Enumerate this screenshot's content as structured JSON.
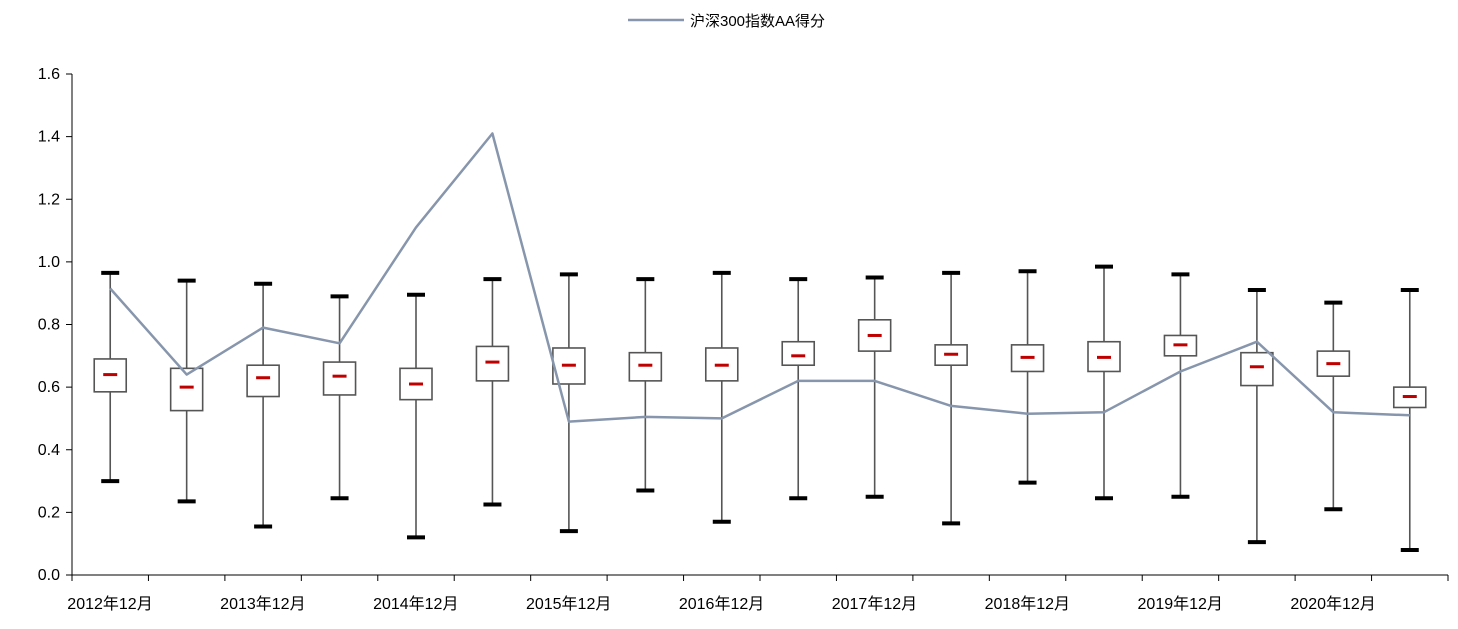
{
  "chart_data": {
    "type": "box",
    "x_tick_labels": [
      "2012年12月",
      "2013年12月",
      "2014年12月",
      "2015年12月",
      "2016年12月",
      "2017年12月",
      "2018年12月",
      "2019年12月",
      "2020年12月"
    ],
    "y_tick_labels": [
      "0.0",
      "0.2",
      "0.4",
      "0.6",
      "0.8",
      "1.0",
      "1.2",
      "1.4",
      "1.6"
    ],
    "ylim": [
      0,
      1.6
    ],
    "y_ticks": [
      0,
      0.2,
      0.4,
      0.6,
      0.8,
      1.0,
      1.2,
      1.4,
      1.6
    ],
    "grid": false,
    "legend_position": "top-center",
    "boxes": [
      {
        "min": 0.3,
        "q1": 0.585,
        "median": 0.64,
        "q3": 0.69,
        "max": 0.965
      },
      {
        "min": 0.235,
        "q1": 0.525,
        "median": 0.6,
        "q3": 0.66,
        "max": 0.94
      },
      {
        "min": 0.155,
        "q1": 0.57,
        "median": 0.63,
        "q3": 0.67,
        "max": 0.93
      },
      {
        "min": 0.245,
        "q1": 0.575,
        "median": 0.635,
        "q3": 0.68,
        "max": 0.89
      },
      {
        "min": 0.12,
        "q1": 0.56,
        "median": 0.61,
        "q3": 0.66,
        "max": 0.895
      },
      {
        "min": 0.225,
        "q1": 0.62,
        "median": 0.68,
        "q3": 0.73,
        "max": 0.945
      },
      {
        "min": 0.14,
        "q1": 0.61,
        "median": 0.67,
        "q3": 0.725,
        "max": 0.96
      },
      {
        "min": 0.27,
        "q1": 0.62,
        "median": 0.67,
        "q3": 0.71,
        "max": 0.945
      },
      {
        "min": 0.17,
        "q1": 0.62,
        "median": 0.67,
        "q3": 0.725,
        "max": 0.965
      },
      {
        "min": 0.245,
        "q1": 0.67,
        "median": 0.7,
        "q3": 0.745,
        "max": 0.945
      },
      {
        "min": 0.25,
        "q1": 0.715,
        "median": 0.765,
        "q3": 0.815,
        "max": 0.95
      },
      {
        "min": 0.165,
        "q1": 0.67,
        "median": 0.705,
        "q3": 0.735,
        "max": 0.965
      },
      {
        "min": 0.295,
        "q1": 0.65,
        "median": 0.695,
        "q3": 0.735,
        "max": 0.97
      },
      {
        "min": 0.245,
        "q1": 0.65,
        "median": 0.695,
        "q3": 0.745,
        "max": 0.985
      },
      {
        "min": 0.25,
        "q1": 0.7,
        "median": 0.735,
        "q3": 0.765,
        "max": 0.96
      },
      {
        "min": 0.105,
        "q1": 0.605,
        "median": 0.665,
        "q3": 0.71,
        "max": 0.91
      },
      {
        "min": 0.21,
        "q1": 0.635,
        "median": 0.675,
        "q3": 0.715,
        "max": 0.87
      },
      {
        "min": 0.08,
        "q1": 0.535,
        "median": 0.57,
        "q3": 0.6,
        "max": 0.91
      }
    ],
    "series": [
      {
        "name": "沪深300指数AA得分",
        "color": "#8796ac",
        "values": [
          0.915,
          0.64,
          0.79,
          0.74,
          1.11,
          1.41,
          0.49,
          0.505,
          0.5,
          0.62,
          0.62,
          0.54,
          0.515,
          0.52,
          0.65,
          0.745,
          0.52,
          0.51
        ]
      }
    ],
    "colors": {
      "axis": "#000000",
      "box_fill": "#ffffff",
      "box_stroke": "#555555",
      "whisker": "#555555",
      "cap": "#000000",
      "median": "#c00000"
    }
  }
}
